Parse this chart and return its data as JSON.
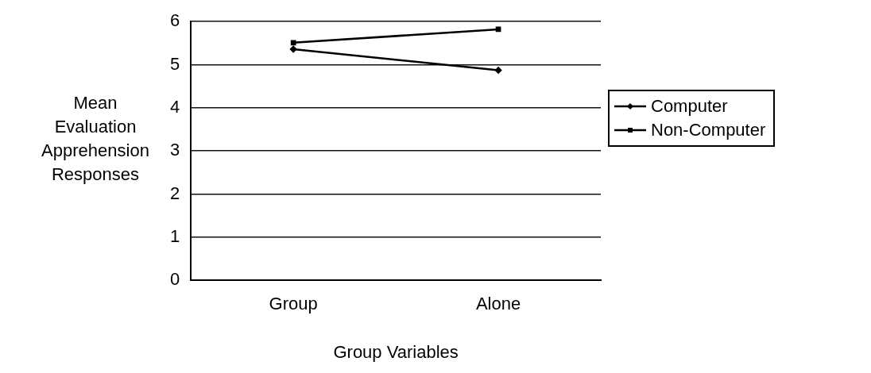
{
  "chart_data": {
    "type": "line",
    "xlabel": "Group Variables",
    "ylabel": "Mean Evaluation Apprehension Responses",
    "categories": [
      "Group",
      "Alone"
    ],
    "series": [
      {
        "name": "Computer",
        "color": "#000000",
        "values": [
          5.36,
          4.87
        ],
        "marker": "diamond"
      },
      {
        "name": "Non-Computer",
        "color": "#000000",
        "values": [
          5.51,
          5.82
        ],
        "marker": "square"
      }
    ],
    "ylim": [
      0,
      6
    ],
    "yticks": [
      0,
      1,
      2,
      3,
      4,
      5,
      6
    ],
    "grid": "y",
    "legend": "right",
    "line_style": "solid"
  }
}
